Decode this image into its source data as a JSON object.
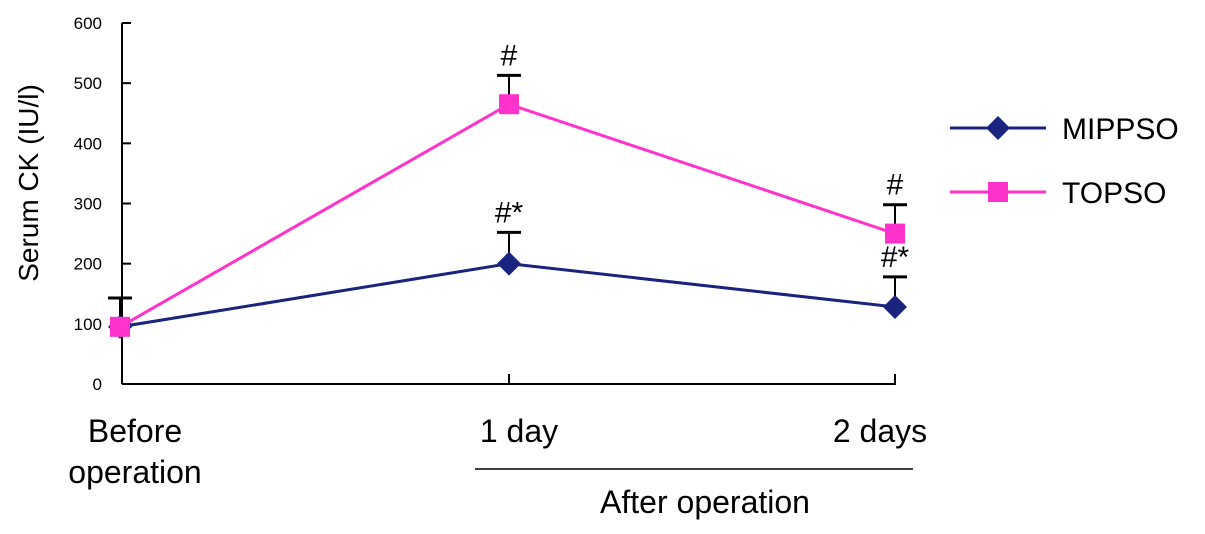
{
  "chart_data": {
    "type": "line",
    "categories": [
      "Before operation",
      "1 day",
      "2 days"
    ],
    "category_lines": [
      [
        "Before",
        "operation"
      ],
      [
        "1 day"
      ],
      [
        "2 days"
      ]
    ],
    "group_label": "After operation",
    "ylabel": "Serum CK (IU/l)",
    "ylim": [
      0,
      600
    ],
    "yticks": [
      "0",
      "100",
      "200",
      "300",
      "400",
      "500",
      "600"
    ],
    "legend_position": "right",
    "grid": false,
    "series": [
      {
        "name": "MIPPSO",
        "color": "#1a237e",
        "marker": "diamond",
        "values": [
          95,
          200,
          128
        ],
        "errors": [
          48,
          52,
          50
        ],
        "annotations": [
          "",
          "#*",
          "#*"
        ]
      },
      {
        "name": "TOPSO",
        "color": "#ff33cc",
        "marker": "square",
        "values": [
          95,
          465,
          250
        ],
        "errors": [
          0,
          48,
          48
        ],
        "annotations": [
          "",
          "#",
          "#"
        ]
      }
    ]
  }
}
